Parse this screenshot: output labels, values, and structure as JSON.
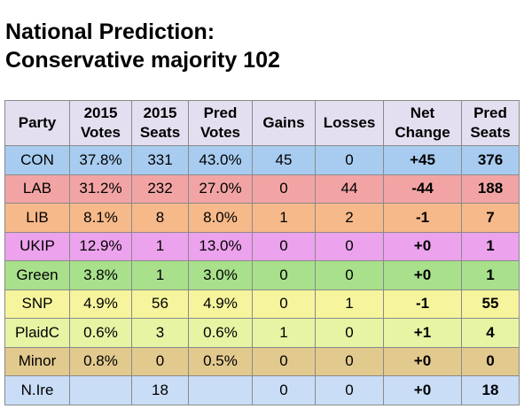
{
  "title": {
    "line1": "National Prediction:",
    "line2": "Conservative majority 102"
  },
  "table": {
    "header": [
      "Party",
      "2015 Votes",
      "2015 Seats",
      "Pred Votes",
      "Gains",
      "Losses",
      "Net Change",
      "Pred Seats"
    ],
    "rows": [
      [
        "CON",
        "37.8%",
        "331",
        "43.0%",
        "45",
        "0",
        "+45",
        "376"
      ],
      [
        "LAB",
        "31.2%",
        "232",
        "27.0%",
        "0",
        "44",
        "-44",
        "188"
      ],
      [
        "LIB",
        "8.1%",
        "8",
        "8.0%",
        "1",
        "2",
        "-1",
        "7"
      ],
      [
        "UKIP",
        "12.9%",
        "1",
        "13.0%",
        "0",
        "0",
        "+0",
        "1"
      ],
      [
        "Green",
        "3.8%",
        "1",
        "3.0%",
        "0",
        "0",
        "+0",
        "1"
      ],
      [
        "SNP",
        "4.9%",
        "56",
        "4.9%",
        "0",
        "1",
        "-1",
        "55"
      ],
      [
        "PlaidC",
        "0.6%",
        "3",
        "0.6%",
        "1",
        "0",
        "+1",
        "4"
      ],
      [
        "Minor",
        "0.8%",
        "0",
        "0.5%",
        "0",
        "0",
        "+0",
        "0"
      ],
      [
        "N.Ire",
        null,
        "18",
        null,
        "0",
        "0",
        "+0",
        "18"
      ]
    ]
  }
}
